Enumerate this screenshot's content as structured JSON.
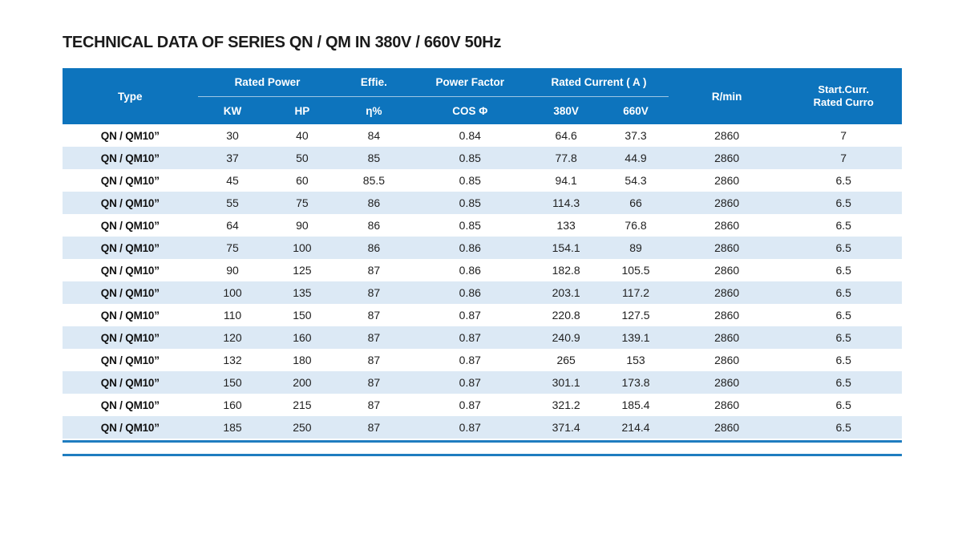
{
  "title": "TECHNICAL DATA OF SERIES QN / QM IN 380V / 660V 50Hz",
  "colors": {
    "header_background": "#0d74bd",
    "header_text": "#ffffff",
    "row_stripe": "#dce9f5",
    "bottom_rule": "#1f7dc0",
    "body_text": "#212121"
  },
  "table": {
    "header": {
      "type": "Type",
      "rated_power": "Rated Power",
      "kw": "KW",
      "hp": "HP",
      "effie": "Effie.",
      "eta": "η%",
      "power_factor": "Power Factor",
      "cos_phi": "COS Φ",
      "rated_current": "Rated Current ( A )",
      "v380": "380V",
      "v660": "660V",
      "rpm": "R/min",
      "start_curr_line1": "Start.Curr.",
      "start_curr_line2": "Rated Curro"
    },
    "rows": [
      {
        "type": "QN / QM10”",
        "kw": "30",
        "hp": "40",
        "eta": "84",
        "cos": "0.84",
        "a380": "64.6",
        "a660": "37.3",
        "rpm": "2860",
        "start": "7"
      },
      {
        "type": "QN / QM10”",
        "kw": "37",
        "hp": "50",
        "eta": "85",
        "cos": "0.85",
        "a380": "77.8",
        "a660": "44.9",
        "rpm": "2860",
        "start": "7"
      },
      {
        "type": "QN / QM10”",
        "kw": "45",
        "hp": "60",
        "eta": "85.5",
        "cos": "0.85",
        "a380": "94.1",
        "a660": "54.3",
        "rpm": "2860",
        "start": "6.5"
      },
      {
        "type": "QN / QM10”",
        "kw": "55",
        "hp": "75",
        "eta": "86",
        "cos": "0.85",
        "a380": "114.3",
        "a660": "66",
        "rpm": "2860",
        "start": "6.5"
      },
      {
        "type": "QN / QM10”",
        "kw": "64",
        "hp": "90",
        "eta": "86",
        "cos": "0.85",
        "a380": "133",
        "a660": "76.8",
        "rpm": "2860",
        "start": "6.5"
      },
      {
        "type": "QN / QM10”",
        "kw": "75",
        "hp": "100",
        "eta": "86",
        "cos": "0.86",
        "a380": "154.1",
        "a660": "89",
        "rpm": "2860",
        "start": "6.5"
      },
      {
        "type": "QN / QM10”",
        "kw": "90",
        "hp": "125",
        "eta": "87",
        "cos": "0.86",
        "a380": "182.8",
        "a660": "105.5",
        "rpm": "2860",
        "start": "6.5"
      },
      {
        "type": "QN / QM10”",
        "kw": "100",
        "hp": "135",
        "eta": "87",
        "cos": "0.86",
        "a380": "203.1",
        "a660": "117.2",
        "rpm": "2860",
        "start": "6.5"
      },
      {
        "type": "QN / QM10”",
        "kw": "110",
        "hp": "150",
        "eta": "87",
        "cos": "0.87",
        "a380": "220.8",
        "a660": "127.5",
        "rpm": "2860",
        "start": "6.5"
      },
      {
        "type": "QN / QM10”",
        "kw": "120",
        "hp": "160",
        "eta": "87",
        "cos": "0.87",
        "a380": "240.9",
        "a660": "139.1",
        "rpm": "2860",
        "start": "6.5"
      },
      {
        "type": "QN / QM10”",
        "kw": "132",
        "hp": "180",
        "eta": "87",
        "cos": "0.87",
        "a380": "265",
        "a660": "153",
        "rpm": "2860",
        "start": "6.5"
      },
      {
        "type": "QN / QM10”",
        "kw": "150",
        "hp": "200",
        "eta": "87",
        "cos": "0.87",
        "a380": "301.1",
        "a660": "173.8",
        "rpm": "2860",
        "start": "6.5"
      },
      {
        "type": "QN / QM10”",
        "kw": "160",
        "hp": "215",
        "eta": "87",
        "cos": "0.87",
        "a380": "321.2",
        "a660": "185.4",
        "rpm": "2860",
        "start": "6.5"
      },
      {
        "type": "QN / QM10”",
        "kw": "185",
        "hp": "250",
        "eta": "87",
        "cos": "0.87",
        "a380": "371.4",
        "a660": "214.4",
        "rpm": "2860",
        "start": "6.5"
      }
    ]
  }
}
